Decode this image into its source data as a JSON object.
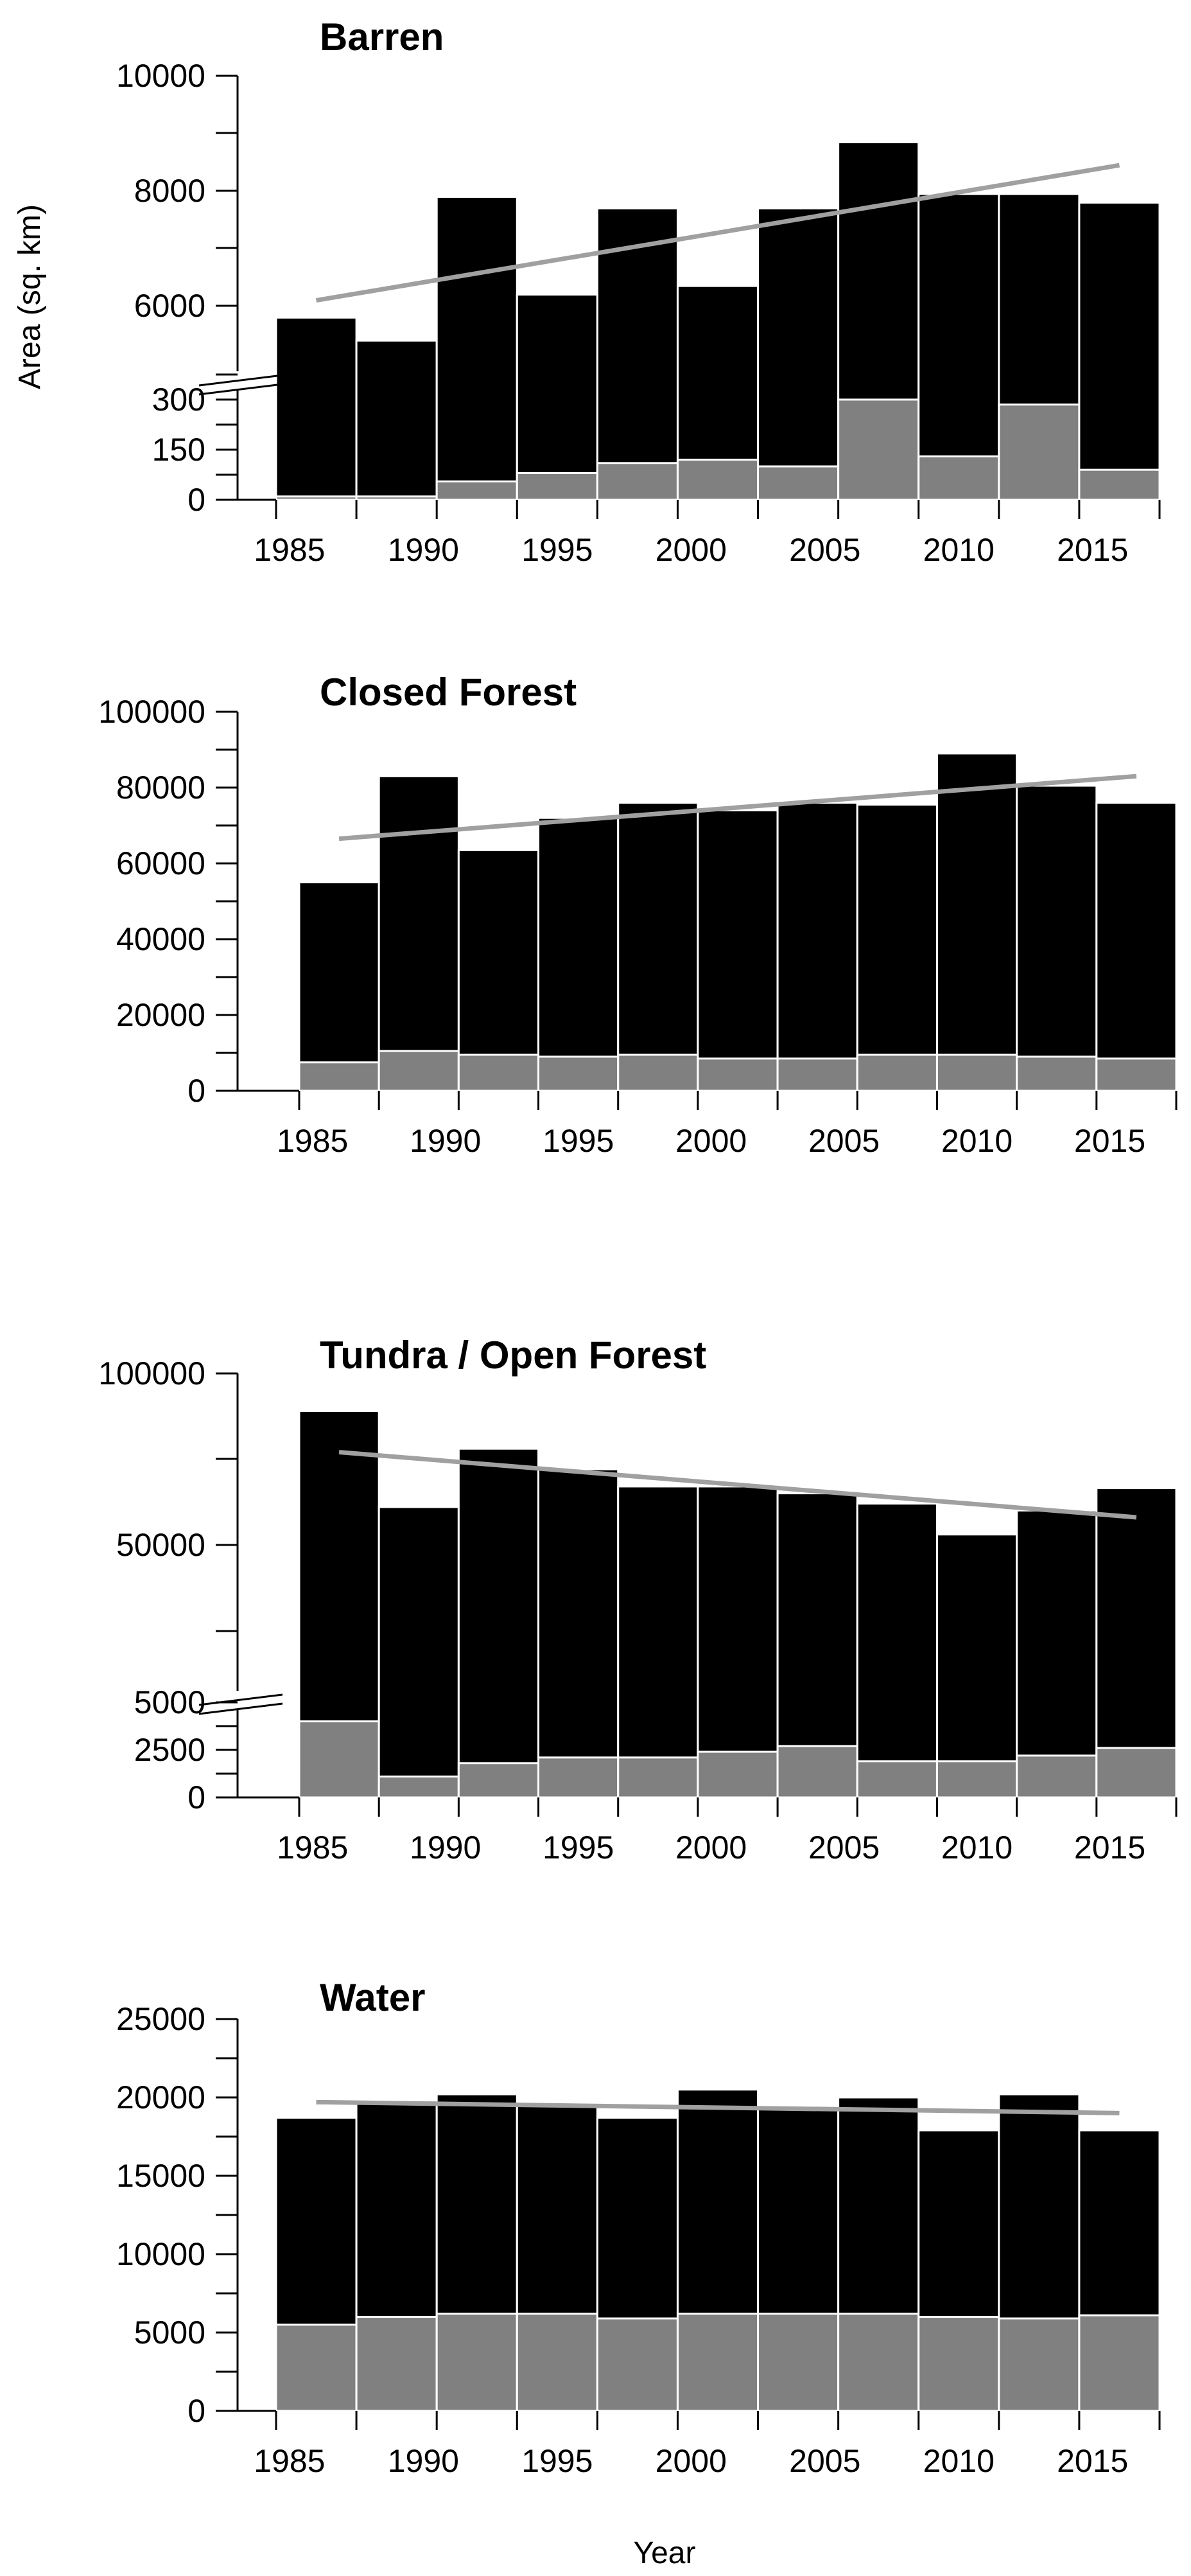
{
  "chart_data": [
    {
      "type": "bar",
      "title": "Barren",
      "ylabel": "Area (sq. km)",
      "xlabel": "",
      "categories": [
        "1986",
        "1989",
        "1992",
        "1995",
        "1998",
        "2001",
        "2004",
        "2007",
        "2010",
        "2013",
        "2016"
      ],
      "x_tick_labels": [
        "1985",
        "1990",
        "1995",
        "2000",
        "2005",
        "2010",
        "2015"
      ],
      "y_tick_labels_lower": [
        "0",
        "150",
        "300"
      ],
      "y_tick_labels_upper": [
        "6000",
        "8000",
        "10000"
      ],
      "axis_break": {
        "lower_range": [
          0,
          300
        ],
        "upper_range": [
          5000,
          10000
        ]
      },
      "series": [
        {
          "name": "",
          "color": "#000000",
          "values": [
            5800,
            5400,
            7900,
            6200,
            7700,
            6350,
            7700,
            8850,
            7950,
            7950,
            7800
          ]
        },
        {
          "name": "",
          "color": "#808080",
          "values": [
            10,
            10,
            55,
            80,
            110,
            120,
            100,
            300,
            130,
            285,
            90
          ]
        }
      ],
      "trend": {
        "color": "#a0a0a0",
        "start": [
          1986,
          6100
        ],
        "end": [
          2016,
          8450
        ]
      }
    },
    {
      "type": "bar",
      "title": "Closed Forest",
      "ylabel": "",
      "xlabel": "",
      "categories": [
        "1986",
        "1989",
        "1992",
        "1995",
        "1998",
        "2001",
        "2004",
        "2007",
        "2010",
        "2013",
        "2016"
      ],
      "x_tick_labels": [
        "1985",
        "1990",
        "1995",
        "2000",
        "2005",
        "2010",
        "2015"
      ],
      "y_tick_labels": [
        "0",
        "20000",
        "40000",
        "60000",
        "80000",
        "100000"
      ],
      "ylim": [
        0,
        100000
      ],
      "series": [
        {
          "name": "",
          "color": "#000000",
          "values": [
            55000,
            83000,
            63500,
            72000,
            76000,
            74000,
            76000,
            75500,
            89000,
            80500,
            76000
          ]
        },
        {
          "name": "",
          "color": "#808080",
          "values": [
            7500,
            10500,
            9500,
            9000,
            9500,
            8500,
            8500,
            9500,
            9500,
            9000,
            8500
          ]
        }
      ],
      "trend": {
        "color": "#a0a0a0",
        "start": [
          1986,
          66500
        ],
        "end": [
          2016,
          83000
        ]
      }
    },
    {
      "type": "bar",
      "title": "Tundra / Open Forest",
      "ylabel": "",
      "xlabel": "",
      "categories": [
        "1986",
        "1989",
        "1992",
        "1995",
        "1998",
        "2001",
        "2004",
        "2007",
        "2010",
        "2013",
        "2016"
      ],
      "x_tick_labels": [
        "1985",
        "1990",
        "1995",
        "2000",
        "2005",
        "2010",
        "2015"
      ],
      "y_tick_labels_lower": [
        "0",
        "2500",
        "5000"
      ],
      "y_tick_labels_upper": [
        "50000",
        "100000"
      ],
      "axis_break": {
        "lower_range": [
          0,
          5000
        ],
        "upper_range": [
          5000,
          100000
        ]
      },
      "series": [
        {
          "name": "",
          "color": "#000000",
          "values": [
            89000,
            61000,
            78000,
            72000,
            67000,
            67000,
            65000,
            62000,
            53000,
            60000,
            66500
          ]
        },
        {
          "name": "",
          "color": "#808080",
          "values": [
            4000,
            1100,
            1800,
            2100,
            2100,
            2400,
            2700,
            1900,
            1900,
            2200,
            2600
          ]
        }
      ],
      "trend": {
        "color": "#a0a0a0",
        "start": [
          1986,
          77000
        ],
        "end": [
          2016,
          58000
        ]
      }
    },
    {
      "type": "bar",
      "title": "Water",
      "ylabel": "",
      "xlabel": "Year",
      "categories": [
        "1986",
        "1989",
        "1992",
        "1995",
        "1998",
        "2001",
        "2004",
        "2007",
        "2010",
        "2013",
        "2016"
      ],
      "x_tick_labels": [
        "1985",
        "1990",
        "1995",
        "2000",
        "2005",
        "2010",
        "2015"
      ],
      "y_tick_labels": [
        "0",
        "5000",
        "10000",
        "15000",
        "20000",
        "25000"
      ],
      "ylim": [
        0,
        25000
      ],
      "series": [
        {
          "name": "",
          "color": "#000000",
          "values": [
            18700,
            19800,
            20200,
            19500,
            18700,
            20500,
            19300,
            20000,
            17900,
            20200,
            17900
          ]
        },
        {
          "name": "",
          "color": "#808080",
          "values": [
            5500,
            6000,
            6200,
            6200,
            5900,
            6200,
            6200,
            6200,
            6000,
            5900,
            6100
          ]
        }
      ],
      "trend": {
        "color": "#a0a0a0",
        "start": [
          1986,
          19700
        ],
        "end": [
          2016,
          19000
        ]
      }
    }
  ]
}
